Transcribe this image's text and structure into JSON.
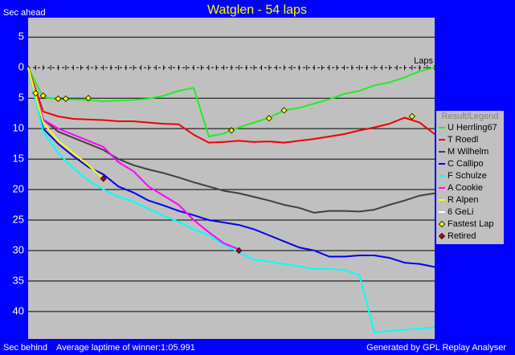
{
  "chart_data": {
    "type": "line",
    "title": "Watglen - 54 laps",
    "y_label_top": "Sec ahead",
    "y_label_bottom": "Sec behind",
    "x_label": "Laps",
    "footer_left": "Average laptime of winner:1:05.991",
    "footer_right": "Generated by GPL Replay Analyser",
    "legend_title": "Result/Legend",
    "legend": "right",
    "xlim": [
      0,
      54
    ],
    "xticks": [
      0,
      1,
      2,
      3,
      4,
      5,
      6,
      7,
      8,
      9,
      10,
      11,
      12,
      13,
      14,
      15,
      16,
      17,
      18,
      19,
      20,
      21,
      22,
      23,
      24,
      25,
      26,
      27,
      28,
      29,
      30,
      31,
      32,
      33,
      34,
      35,
      36,
      37,
      38,
      39,
      40,
      41,
      42,
      43,
      44,
      45,
      46,
      47,
      48,
      49,
      50,
      51,
      52,
      53,
      54
    ],
    "ylim": [
      44.5,
      -8.2
    ],
    "yticks": [
      {
        "value": -5,
        "label": "5"
      },
      0,
      5,
      10,
      15,
      20,
      25,
      30,
      35,
      40
    ],
    "grid": true,
    "x": [
      0,
      2,
      4,
      6,
      8,
      10,
      12,
      14,
      16,
      18,
      20,
      22,
      24,
      26,
      28,
      30,
      32,
      34,
      36,
      38,
      40,
      42,
      44,
      46,
      48,
      50,
      52,
      54
    ],
    "series": [
      {
        "name": "U Herrling67",
        "color": "#22ee22",
        "values": [
          0,
          4.8,
          5.2,
          5.2,
          5.3,
          5.5,
          5.4,
          5.3,
          5.1,
          4.6,
          3.8,
          3.3,
          11.3,
          10.8,
          9.8,
          9.0,
          8.2,
          7.0,
          6.6,
          5.9,
          5.2,
          4.3,
          3.8,
          2.9,
          2.4,
          1.6,
          0.6,
          0
        ]
      },
      {
        "name": "T Roedl",
        "color": "#ee0000",
        "values": [
          0,
          7.2,
          8.0,
          8.4,
          8.5,
          8.6,
          8.8,
          8.8,
          9.0,
          9.2,
          9.3,
          11.0,
          12.3,
          12.2,
          12.0,
          12.2,
          12.1,
          12.3,
          12.0,
          11.7,
          11.3,
          10.9,
          10.3,
          9.8,
          9.2,
          8.2,
          9.0,
          10.9
        ]
      },
      {
        "name": "M Wilhelm",
        "color": "#404040",
        "values": [
          0,
          8.5,
          10.5,
          11.5,
          12.5,
          13.5,
          15,
          16,
          16.7,
          17.3,
          18,
          18.8,
          19.5,
          20.2,
          20.6,
          21.2,
          21.8,
          22.5,
          23.0,
          23.8,
          23.5,
          23.5,
          23.6,
          23.3,
          22.5,
          21.8,
          21.0,
          20.6
        ]
      },
      {
        "name": "C Callipo",
        "color": "#0000ee",
        "values": [
          0,
          10,
          12.5,
          14.5,
          16.3,
          17.5,
          19.5,
          20.5,
          21.8,
          22.6,
          23.5,
          24.2,
          25.0,
          25.4,
          25.8,
          26.5,
          27.5,
          28.5,
          29.5,
          30.0,
          31.0,
          31.0,
          30.8,
          30.8,
          31.2,
          32.0,
          32.2,
          32.7
        ]
      },
      {
        "name": "F Schulze",
        "color": "#00ffff",
        "values": [
          0,
          10.5,
          14,
          16.5,
          18.5,
          20,
          21.2,
          22,
          23.2,
          24.3,
          25.3,
          26.5,
          27.5,
          29,
          30.3,
          31.5,
          31.8,
          32.2,
          32.6,
          33.0,
          33.0,
          33.2,
          34.0,
          43.4,
          43.2,
          43.0,
          42.8,
          42.6
        ]
      },
      {
        "name": "A Cookie",
        "color": "#ff00ff",
        "values": [
          0,
          8.5,
          10,
          11,
          12,
          13,
          15.5,
          17,
          19.5,
          21,
          22.5,
          25,
          27,
          28.8,
          29.8,
          null,
          null,
          null,
          null,
          null,
          null,
          null,
          null,
          null,
          null,
          null,
          null,
          null
        ]
      },
      {
        "name": "R Alpen",
        "color": "#ffff00",
        "values": [
          0,
          9,
          12,
          14,
          16,
          18.2,
          null,
          null,
          null,
          null,
          null,
          null,
          null,
          null,
          null,
          null,
          null,
          null,
          null,
          null,
          null,
          null,
          null,
          null,
          null,
          null,
          null,
          null
        ]
      },
      {
        "name": "6 GeLi",
        "color": "#ffffff",
        "values": [
          null,
          null,
          null,
          null,
          null,
          null,
          null,
          null,
          null,
          null,
          null,
          null,
          null,
          null,
          null,
          null,
          null,
          null,
          null,
          null,
          null,
          null,
          null,
          null,
          null,
          null,
          null,
          null
        ]
      }
    ],
    "markers": [
      {
        "name": "Fastest Lap",
        "color": "#ffff00",
        "x": [
          1,
          2,
          4,
          5,
          8,
          27,
          32,
          34,
          51
        ],
        "values": [
          4.2,
          4.6,
          5.1,
          5.1,
          5.0,
          10.3,
          8.3,
          7.0,
          8.0
        ]
      },
      {
        "name": "Retired",
        "color": "#cc0000",
        "x": [
          10,
          28
        ],
        "values": [
          18.2,
          30.0
        ]
      }
    ]
  }
}
